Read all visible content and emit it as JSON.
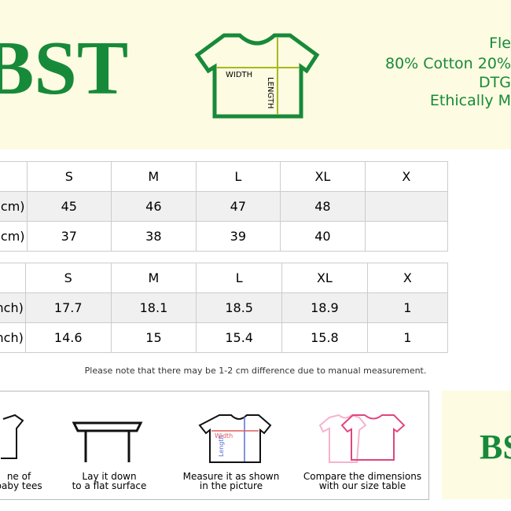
{
  "header": {
    "logo": "BST",
    "shirt": {
      "width_label": "WIDTH",
      "length_label": "LENGTH"
    },
    "features": [
      "Fle",
      "80% Cotton 20%",
      "DTG",
      "Ethically M"
    ]
  },
  "tables": [
    {
      "columns": [
        "S",
        "M",
        "L",
        "XL",
        "X"
      ],
      "rows": [
        {
          "label": "(cm)",
          "values": [
            "45",
            "46",
            "47",
            "48",
            ""
          ]
        },
        {
          "label": "cm)",
          "values": [
            "37",
            "38",
            "39",
            "40",
            ""
          ]
        }
      ]
    },
    {
      "columns": [
        "S",
        "M",
        "L",
        "XL",
        "X"
      ],
      "rows": [
        {
          "label": "inch)",
          "values": [
            "17.7",
            "18.1",
            "18.5",
            "18.9",
            "1"
          ]
        },
        {
          "label": "nch)",
          "values": [
            "14.6",
            "15",
            "15.4",
            "15.8",
            "1"
          ]
        }
      ]
    }
  ],
  "note": "Please note that there may be 1-2 cm difference due to manual measurement.",
  "steps": [
    {
      "line1": "ne of",
      "line2": "baby tees"
    },
    {
      "line1": "Lay it down",
      "line2": "to a flat surface"
    },
    {
      "line1": "Measure it as shown",
      "line2": "in the picture",
      "width_label": "Width",
      "length_label": "Length"
    },
    {
      "line1": "Compare the dimensions",
      "line2": "with our size table"
    }
  ],
  "footer_logo": "BS"
}
